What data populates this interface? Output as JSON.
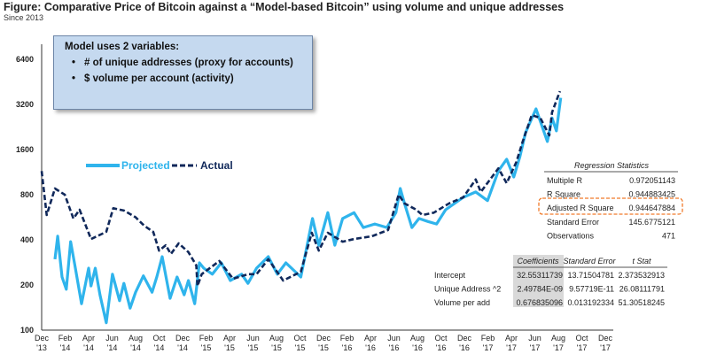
{
  "title": "Figure: Comparative Price of Bitcoin against a “Model-based Bitcoin” using volume and unique addresses",
  "subtitle": "Since 2013",
  "note": {
    "heading": "Model uses 2 variables:",
    "bullets": [
      "# of unique addresses (proxy for accounts)",
      "$ volume per account (activity)"
    ]
  },
  "regression_statistics": {
    "title": "Regression Statistics",
    "rows": [
      {
        "label": "Multiple R",
        "value": "0.972051143"
      },
      {
        "label": "R Square",
        "value": "0.944883425"
      },
      {
        "label": "Adjusted R Square",
        "value": "0.944647884"
      },
      {
        "label": "Standard Error",
        "value": "145.6775121"
      },
      {
        "label": "Observations",
        "value": "471"
      }
    ],
    "highlight_color": "#f07a2a"
  },
  "coefficients": {
    "headers": [
      "Coefficients",
      "Standard Error",
      "t Stat"
    ],
    "rows": [
      {
        "label": "Intercept",
        "values": [
          "32.55311739",
          "13.71504781",
          "2.373532913"
        ]
      },
      {
        "label": "Unique Address ^2",
        "values": [
          "2.49784E-09",
          "9.57719E-11",
          "26.08111791"
        ]
      },
      {
        "label": "Volume per add",
        "values": [
          "0.676835096",
          "0.013192334",
          "51.30518245"
        ]
      }
    ]
  },
  "chart_data": {
    "type": "line",
    "title": "Figure: Comparative Price of Bitcoin against a “Model-based Bitcoin” using volume and unique addresses",
    "subtitle": "Since 2013",
    "xlabel": "",
    "ylabel": "",
    "y_scale": "log2",
    "ylim": [
      100,
      6400
    ],
    "xlim": [
      "2013-12-01",
      "2017-12-01"
    ],
    "y_ticks": [
      "100",
      "200",
      "400",
      "800",
      "1600",
      "3200",
      "6400"
    ],
    "x_ticks": [
      [
        "Dec",
        "'13"
      ],
      [
        "Feb",
        "'14"
      ],
      [
        "Apr",
        "'14"
      ],
      [
        "Jun",
        "'14"
      ],
      [
        "Aug",
        "'14"
      ],
      [
        "Oct",
        "'14"
      ],
      [
        "Dec",
        "'14"
      ],
      [
        "Feb",
        "'15"
      ],
      [
        "Apr",
        "'15"
      ],
      [
        "Jun",
        "'15"
      ],
      [
        "Aug",
        "'15"
      ],
      [
        "Oct",
        "'15"
      ],
      [
        "Dec",
        "'15"
      ],
      [
        "Feb",
        "'16"
      ],
      [
        "Apr",
        "'16"
      ],
      [
        "Jun",
        "'16"
      ],
      [
        "Aug",
        "'16"
      ],
      [
        "Oct",
        "'16"
      ],
      [
        "Dec",
        "'16"
      ],
      [
        "Feb",
        "'17"
      ],
      [
        "Apr",
        "'17"
      ],
      [
        "Jun",
        "'17"
      ],
      [
        "Aug",
        "'17"
      ],
      [
        "Oct",
        "'17"
      ],
      [
        "Dec",
        "'17"
      ]
    ],
    "grid": false,
    "legend_placement": "upper-left",
    "series": [
      {
        "name": "Projected",
        "color": "#2fb4ec",
        "style": "solid",
        "x": [
          "2014-01-05",
          "2014-01-12",
          "2014-01-23",
          "2014-02-04",
          "2014-02-15",
          "2014-02-26",
          "2014-03-13",
          "2014-04-01",
          "2014-04-07",
          "2014-04-18",
          "2014-04-30",
          "2014-05-16",
          "2014-06-02",
          "2014-06-20",
          "2014-07-01",
          "2014-07-17",
          "2014-08-01",
          "2014-08-21",
          "2014-09-13",
          "2014-09-25",
          "2014-10-09",
          "2014-10-29",
          "2014-11-17",
          "2014-12-05",
          "2014-12-16",
          "2015-01-02",
          "2015-01-14",
          "2015-01-25",
          "2015-02-17",
          "2015-03-10",
          "2015-04-03",
          "2015-05-02",
          "2015-05-18",
          "2015-06-10",
          "2015-07-10",
          "2015-08-03",
          "2015-08-25",
          "2015-10-03",
          "2015-11-03",
          "2015-11-19",
          "2015-12-12",
          "2015-12-30",
          "2016-01-20",
          "2016-02-19",
          "2016-03-13",
          "2016-04-12",
          "2016-05-13",
          "2016-06-06",
          "2016-06-17",
          "2016-06-28",
          "2016-07-17",
          "2016-08-05",
          "2016-08-28",
          "2016-09-20",
          "2016-10-13",
          "2016-11-28",
          "2016-12-30",
          "2017-01-30",
          "2017-02-28",
          "2017-03-19",
          "2017-04-07",
          "2017-04-23",
          "2017-05-07",
          "2017-06-04",
          "2017-07-03",
          "2017-07-15",
          "2017-07-26",
          "2017-08-07"
        ],
        "values": [
          297,
          423,
          226,
          187,
          389,
          270,
          150,
          259,
          197,
          259,
          172,
          112,
          236,
          157,
          205,
          140,
          179,
          230,
          179,
          226,
          309,
          163,
          226,
          172,
          214,
          150,
          281,
          259,
          236,
          281,
          214,
          236,
          205,
          259,
          309,
          236,
          281,
          226,
          555,
          368,
          607,
          368,
          555,
          607,
          483,
          510,
          483,
          607,
          880,
          700,
          483,
          555,
          530,
          510,
          635,
          768,
          834,
          730,
          1155,
          1380,
          1050,
          1440,
          2070,
          2990,
          1810,
          2600,
          2130,
          3540
        ]
      },
      {
        "name": "Actual",
        "color": "#10285a",
        "style": "dashed",
        "x": [
          "2013-12-01",
          "2013-12-14",
          "2014-01-05",
          "2014-01-30",
          "2014-02-22",
          "2014-03-08",
          "2014-04-07",
          "2014-05-16",
          "2014-06-04",
          "2014-07-01",
          "2014-08-01",
          "2014-08-23",
          "2014-09-16",
          "2014-10-01",
          "2014-10-18",
          "2014-11-01",
          "2014-11-21",
          "2014-12-16",
          "2015-01-06",
          "2015-01-09",
          "2015-01-20",
          "2015-03-05",
          "2015-04-10",
          "2015-05-18",
          "2015-06-10",
          "2015-07-10",
          "2015-08-18",
          "2015-10-03",
          "2015-11-01",
          "2015-11-19",
          "2015-12-12",
          "2016-01-20",
          "2016-02-19",
          "2016-04-05",
          "2016-05-16",
          "2016-06-13",
          "2016-06-28",
          "2016-07-28",
          "2016-08-14",
          "2016-09-13",
          "2016-10-22",
          "2016-11-28",
          "2016-12-30",
          "2017-01-13",
          "2017-02-28",
          "2017-03-19",
          "2017-04-14",
          "2017-04-30",
          "2017-05-23",
          "2017-06-15",
          "2017-07-08",
          "2017-07-15",
          "2017-08-05"
        ],
        "values": [
          1150,
          585,
          880,
          800,
          555,
          635,
          405,
          452,
          650,
          627,
          566,
          497,
          452,
          339,
          368,
          322,
          379,
          331,
          270,
          197,
          236,
          289,
          220,
          236,
          236,
          297,
          214,
          245,
          446,
          339,
          446,
          389,
          405,
          423,
          465,
          800,
          700,
          635,
          585,
          607,
          700,
          768,
          1010,
          834,
          1200,
          955,
          1325,
          1810,
          2720,
          2600,
          1990,
          2830,
          3920
        ]
      }
    ]
  }
}
